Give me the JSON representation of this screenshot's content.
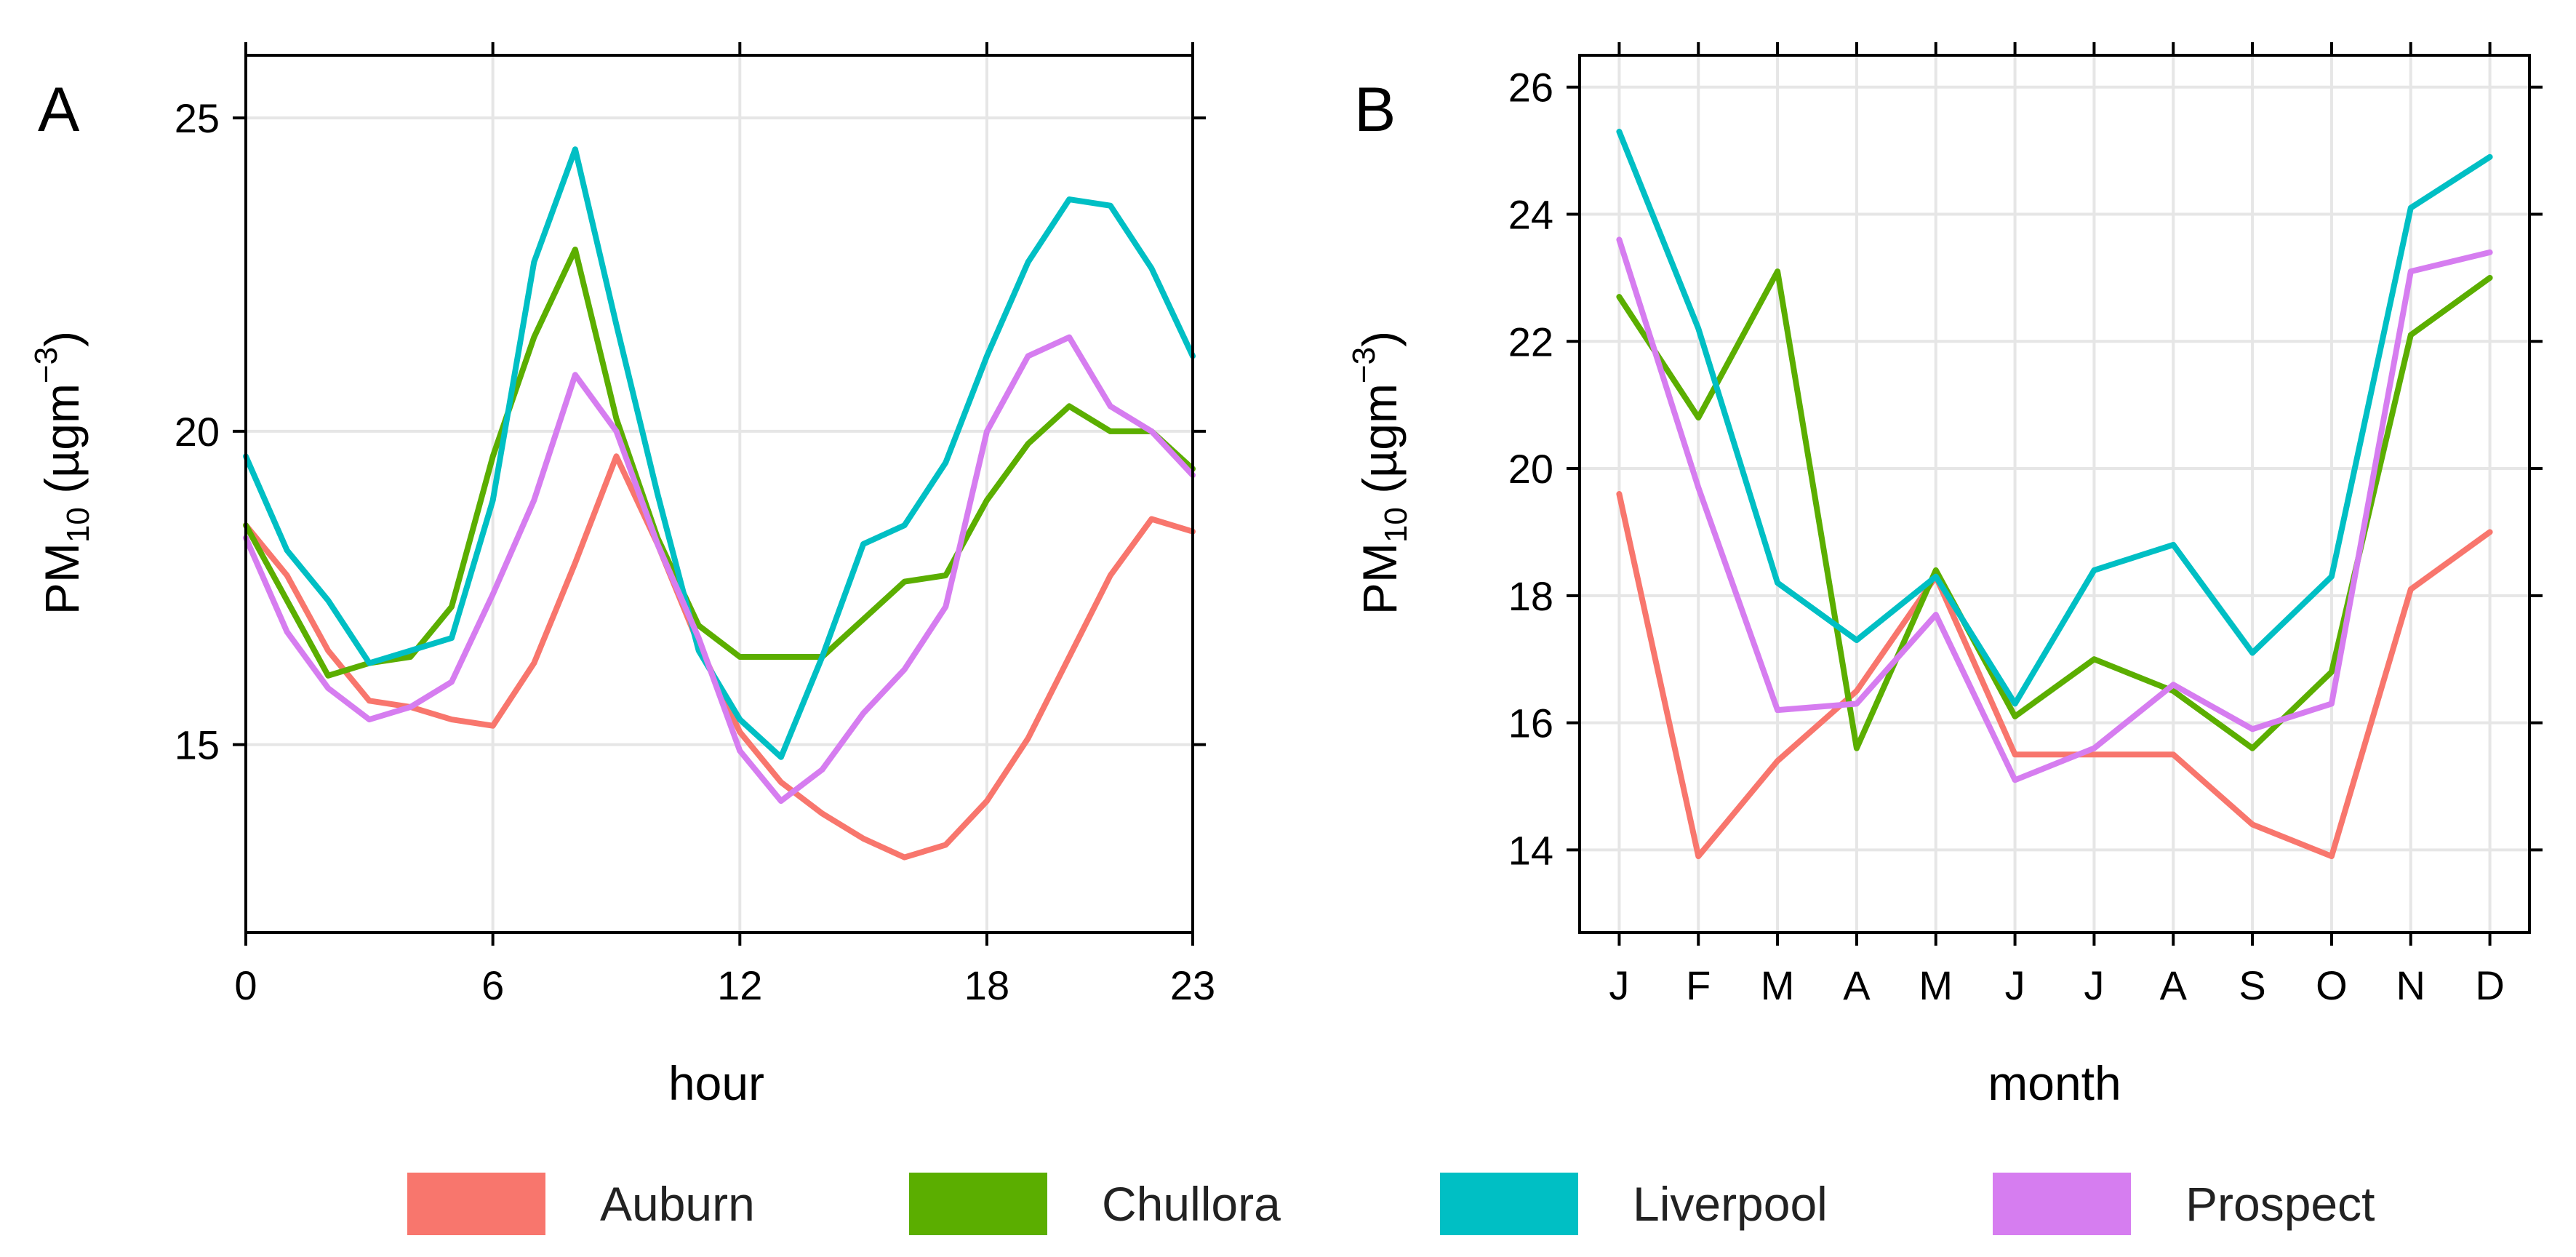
{
  "series_names": [
    "Auburn",
    "Chullora",
    "Liverpool",
    "Prospect"
  ],
  "colors": {
    "Auburn": "#F8766D",
    "Chullora": "#5BAE00",
    "Liverpool": "#00BFC4",
    "Prospect": "#D67DF0"
  },
  "ylabel": {
    "main": "PM",
    "sub": "10",
    "unit_open": " (µgm",
    "unit_sup": "−3",
    "unit_close": ")"
  },
  "chart_data": [
    {
      "panel": "A",
      "type": "line",
      "xlabel": "hour",
      "x": [
        0,
        1,
        2,
        3,
        4,
        5,
        6,
        7,
        8,
        9,
        10,
        11,
        12,
        13,
        14,
        15,
        16,
        17,
        18,
        19,
        20,
        21,
        22,
        23
      ],
      "xlim": [
        0,
        23
      ],
      "xticks": [
        0,
        6,
        12,
        18,
        23
      ],
      "xticklabels": [
        "0",
        "6",
        "12",
        "18",
        "23"
      ],
      "ylim": [
        12,
        26
      ],
      "yticks": [
        15,
        20,
        25
      ],
      "yticklabels": [
        "15",
        "20",
        "25"
      ],
      "grid": true,
      "series": [
        {
          "name": "Auburn",
          "values": [
            18.5,
            17.7,
            16.5,
            15.7,
            15.6,
            15.4,
            15.3,
            16.3,
            17.9,
            19.6,
            18.2,
            16.6,
            15.2,
            14.4,
            13.9,
            13.5,
            13.2,
            13.4,
            14.1,
            15.1,
            16.4,
            17.7,
            18.6,
            18.4
          ]
        },
        {
          "name": "Chullora",
          "values": [
            18.5,
            17.3,
            16.1,
            16.3,
            16.4,
            17.2,
            19.6,
            21.5,
            22.9,
            20.2,
            18.3,
            16.9,
            16.4,
            16.4,
            16.4,
            17.0,
            17.6,
            17.7,
            18.9,
            19.8,
            20.4,
            20.0,
            20.0,
            19.4
          ]
        },
        {
          "name": "Liverpool",
          "values": [
            19.6,
            18.1,
            17.3,
            16.3,
            16.5,
            16.7,
            18.9,
            22.7,
            24.5,
            21.7,
            19.0,
            16.5,
            15.4,
            14.8,
            16.4,
            18.2,
            18.5,
            19.5,
            21.2,
            22.7,
            23.7,
            23.6,
            22.6,
            21.2
          ]
        },
        {
          "name": "Prospect",
          "values": [
            18.3,
            16.8,
            15.9,
            15.4,
            15.6,
            16.0,
            17.4,
            18.9,
            20.9,
            20.0,
            18.2,
            16.7,
            14.9,
            14.1,
            14.6,
            15.5,
            16.2,
            17.2,
            20.0,
            21.2,
            21.5,
            20.4,
            20.0,
            19.3
          ]
        }
      ]
    },
    {
      "panel": "B",
      "type": "line",
      "xlabel": "month",
      "categories": [
        "J",
        "F",
        "M",
        "A",
        "M",
        "J",
        "J",
        "A",
        "S",
        "O",
        "N",
        "D"
      ],
      "xlim": [
        0.5,
        12.5
      ],
      "ylim": [
        12.7,
        26.5
      ],
      "yticks": [
        14,
        16,
        18,
        20,
        22,
        24,
        26
      ],
      "yticklabels": [
        "14",
        "16",
        "18",
        "20",
        "22",
        "24",
        "26"
      ],
      "grid": true,
      "series": [
        {
          "name": "Auburn",
          "values": [
            19.6,
            13.9,
            15.4,
            16.5,
            18.3,
            15.5,
            15.5,
            15.5,
            14.4,
            13.9,
            18.1,
            19.0
          ]
        },
        {
          "name": "Chullora",
          "values": [
            22.7,
            20.8,
            23.1,
            15.6,
            18.4,
            16.1,
            17.0,
            16.5,
            15.6,
            16.8,
            22.1,
            23.0
          ]
        },
        {
          "name": "Liverpool",
          "values": [
            25.3,
            22.2,
            18.2,
            17.3,
            18.3,
            16.3,
            18.4,
            18.8,
            17.1,
            18.3,
            24.1,
            24.9
          ]
        },
        {
          "name": "Prospect",
          "values": [
            23.6,
            19.7,
            16.2,
            16.3,
            17.7,
            15.1,
            15.6,
            16.6,
            15.9,
            16.3,
            23.1,
            23.4
          ]
        }
      ]
    }
  ]
}
